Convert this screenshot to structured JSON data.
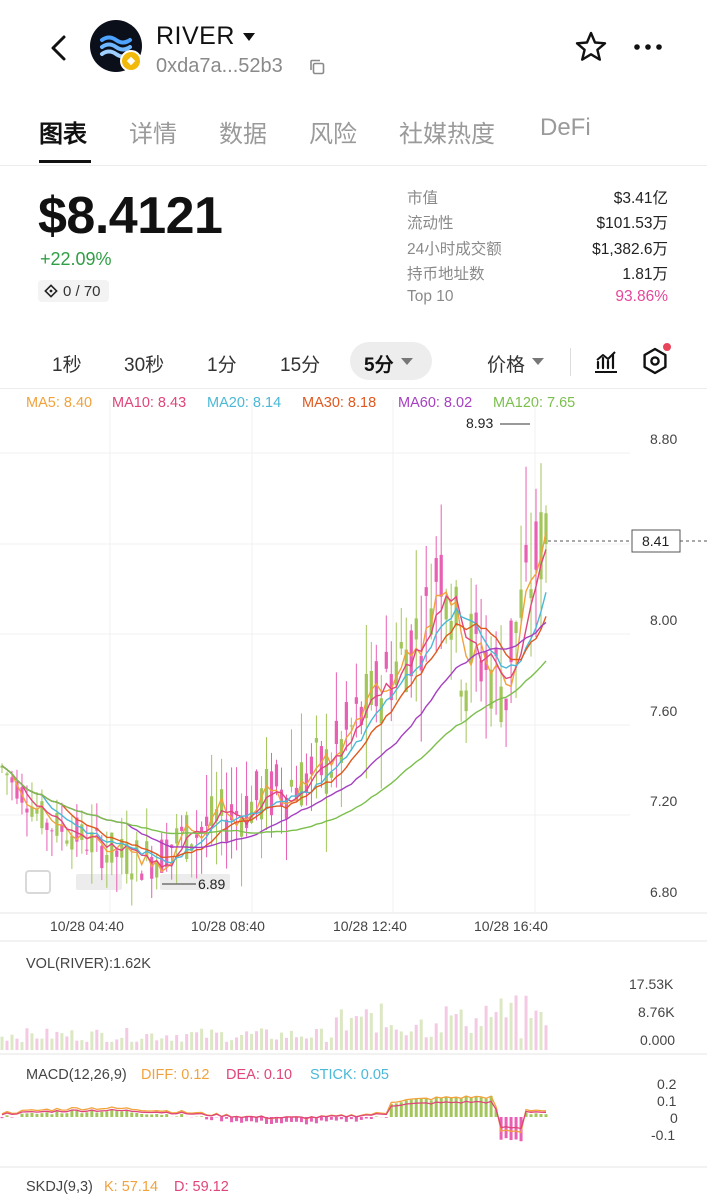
{
  "header": {
    "token_name": "RIVER",
    "address": "0xda7a...52b3",
    "icons": [
      "back-arrow-icon",
      "river-logo",
      "bnb-chain-badge-icon",
      "copy-icon",
      "star-icon",
      "more-icon"
    ]
  },
  "tabs": [
    {
      "label": "图表",
      "active": true
    },
    {
      "label": "详情",
      "active": false
    },
    {
      "label": "数据",
      "active": false
    },
    {
      "label": "风险",
      "active": false
    },
    {
      "label": "社媒热度",
      "active": false
    },
    {
      "label": "DeFi",
      "active": false
    }
  ],
  "price": {
    "value": "$8.4121",
    "change": "+22.09%",
    "holders_badge": "0 / 70"
  },
  "stats": [
    {
      "label": "市值",
      "value": "$3.41亿"
    },
    {
      "label": "流动性",
      "value": "$101.53万"
    },
    {
      "label": "24小时成交额",
      "value": "$1,382.6万"
    },
    {
      "label": "持币地址数",
      "value": "1.81万"
    },
    {
      "label": "Top 10",
      "value": "93.86%"
    }
  ],
  "intervals": [
    "1秒",
    "30秒",
    "1分",
    "15分"
  ],
  "selected_interval": "5分",
  "price_type": "价格",
  "colors": {
    "up": "#2f9e44",
    "pink": "#e5479a",
    "candle_up": "#a3c65a",
    "candle_down": "#e85fb4",
    "ma5": "#f1a23b",
    "ma10": "#e0457b",
    "ma20": "#4bb8d8",
    "ma30": "#e0581f",
    "ma60": "#a63fc1",
    "ma120": "#7bbf4c"
  },
  "ma_legend": [
    {
      "text": "MA5: 8.40",
      "color": "#f1a23b"
    },
    {
      "text": "MA10: 8.43",
      "color": "#e0457b"
    },
    {
      "text": "MA20: 8.14",
      "color": "#4bb8d8"
    },
    {
      "text": "MA30: 8.18",
      "color": "#e0581f"
    },
    {
      "text": "MA60: 8.02",
      "color": "#a63fc1"
    },
    {
      "text": "MA120: 7.65",
      "color": "#7bbf4c"
    }
  ],
  "chart_data": {
    "type": "candlestick",
    "y_ticks": [
      "8.80",
      "8.00",
      "7.60",
      "7.20",
      "6.80"
    ],
    "y_range": [
      6.75,
      8.97
    ],
    "current_price": "8.41",
    "high_marker": "8.93",
    "low_marker": "6.89",
    "x_ticks": [
      "10/28 04:40",
      "10/28 08:40",
      "10/28 12:40",
      "10/28 16:40"
    ]
  },
  "volume": {
    "label": "VOL(RIVER):1.62K",
    "y_ticks": [
      "17.53K",
      "8.76K",
      "0.000"
    ]
  },
  "macd": {
    "label": "MACD(12,26,9)",
    "legend": [
      {
        "text": "DIFF: 0.12",
        "color": "#f1a23b"
      },
      {
        "text": "DEA: 0.10",
        "color": "#e0457b"
      },
      {
        "text": "STICK: 0.05",
        "color": "#4bb8d8"
      }
    ],
    "y_ticks": [
      "0.2",
      "0.1",
      "0",
      "-0.1"
    ]
  },
  "skdj": {
    "label": "SKDJ(9,3)",
    "legend": [
      {
        "text": "K: 57.14",
        "color": "#f1a23b"
      },
      {
        "text": "D: 59.12",
        "color": "#e0457b"
      }
    ]
  }
}
